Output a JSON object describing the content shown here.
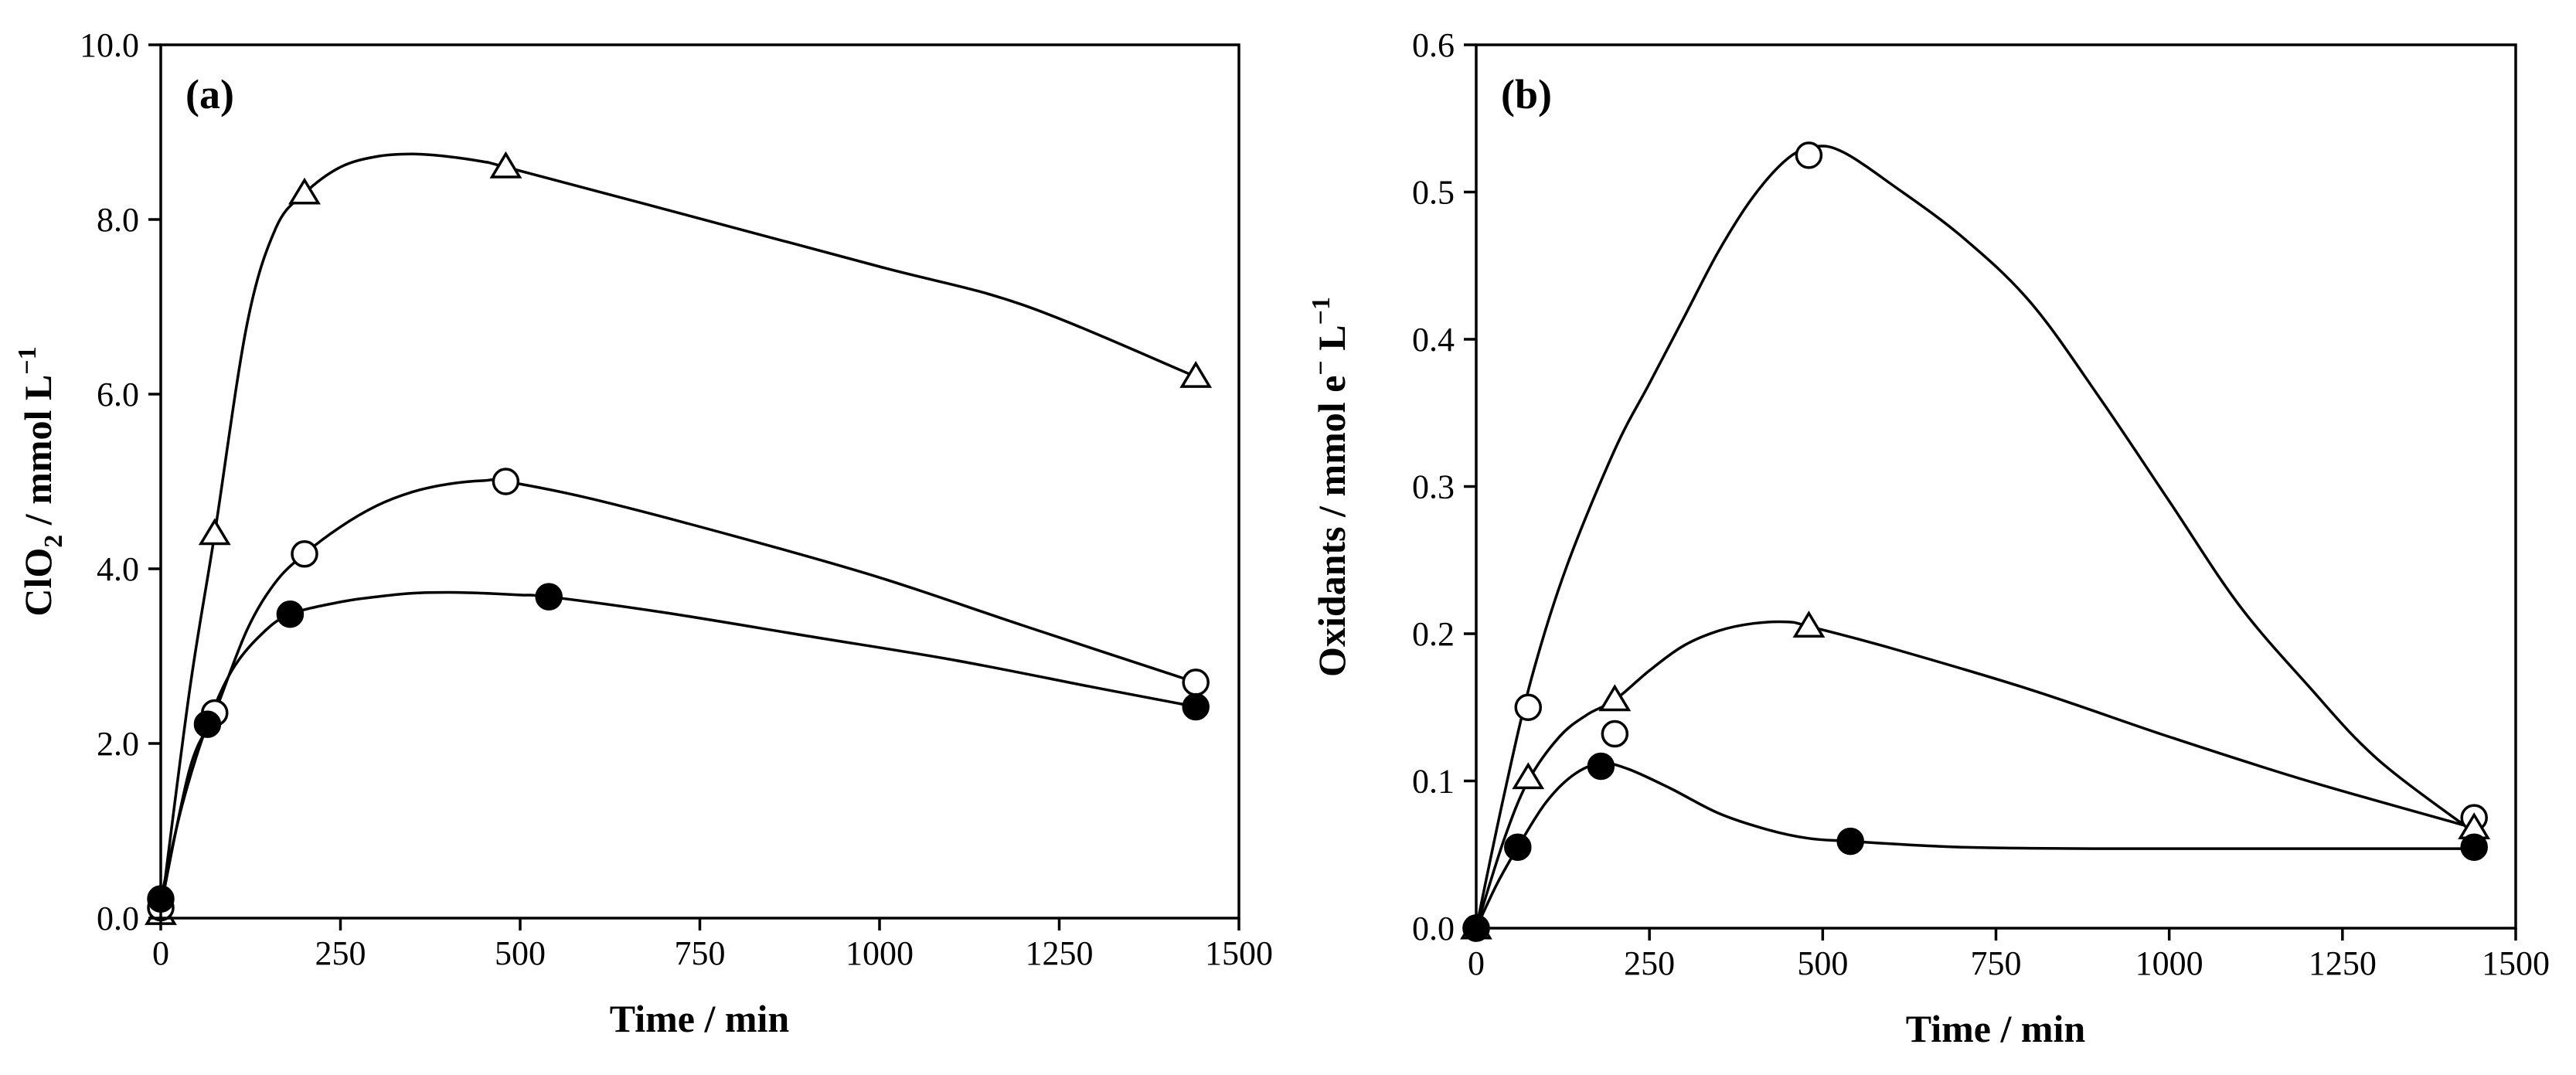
{
  "chart_data": [
    {
      "panel": "(a)",
      "type": "line",
      "xlabel": "Time / min",
      "ylabel_main": "ClO",
      "ylabel_sub": "2",
      "ylabel_rest": " / mmol L",
      "ylabel_sup": "−1",
      "xlim": [
        0,
        1500
      ],
      "ylim": [
        0,
        10
      ],
      "xticks": [
        0,
        250,
        500,
        750,
        1000,
        1250,
        1500
      ],
      "yticks": [
        0,
        2,
        4,
        6,
        8,
        10
      ],
      "ytick_labels": [
        "0.0",
        "2.0",
        "4.0",
        "6.0",
        "8.0",
        "10.0"
      ],
      "grid": false,
      "series": [
        {
          "marker": "triangle-open",
          "x": [
            0,
            75,
            200,
            480,
            1440
          ],
          "y": [
            0.05,
            4.4,
            8.3,
            8.6,
            6.2
          ],
          "curve_x": [
            0,
            40,
            75,
            120,
            160,
            200,
            250,
            300,
            350,
            400,
            450,
            480,
            700,
            1000,
            1200,
            1440
          ],
          "curve_y": [
            0.05,
            2.6,
            4.4,
            6.8,
            7.9,
            8.3,
            8.6,
            8.72,
            8.75,
            8.72,
            8.66,
            8.6,
            8.12,
            7.46,
            7.02,
            6.2
          ]
        },
        {
          "marker": "circle-open",
          "x": [
            0,
            75,
            200,
            480,
            1440
          ],
          "y": [
            0.12,
            2.35,
            4.17,
            5.0,
            2.7
          ],
          "curve_x": [
            0,
            40,
            75,
            120,
            160,
            200,
            250,
            300,
            350,
            400,
            450,
            480,
            600,
            800,
            1000,
            1200,
            1440
          ],
          "curve_y": [
            0.12,
            1.7,
            2.35,
            3.3,
            3.85,
            4.17,
            4.48,
            4.72,
            4.88,
            4.97,
            5.01,
            5.0,
            4.8,
            4.37,
            3.9,
            3.35,
            2.7
          ]
        },
        {
          "marker": "circle-filled",
          "x": [
            0,
            65,
            180,
            540,
            1440
          ],
          "y": [
            0.22,
            2.22,
            3.48,
            3.68,
            2.42
          ],
          "curve_x": [
            0,
            30,
            65,
            100,
            140,
            180,
            250,
            300,
            350,
            400,
            450,
            500,
            540,
            700,
            900,
            1100,
            1300,
            1440
          ],
          "curve_y": [
            0.22,
            1.3,
            2.22,
            2.85,
            3.25,
            3.48,
            3.62,
            3.68,
            3.72,
            3.73,
            3.72,
            3.7,
            3.68,
            3.5,
            3.23,
            2.96,
            2.64,
            2.42
          ]
        }
      ]
    },
    {
      "panel": "(b)",
      "type": "line",
      "xlabel": "Time / min",
      "ylabel_main": "Oxidants / mmol e",
      "ylabel_sup1": "−",
      "ylabel_rest": " L",
      "ylabel_sup2": "−1",
      "xlim": [
        0,
        1500
      ],
      "ylim": [
        0,
        0.6
      ],
      "xticks": [
        0,
        250,
        500,
        750,
        1000,
        1250,
        1500
      ],
      "yticks": [
        0,
        0.1,
        0.2,
        0.3,
        0.4,
        0.5,
        0.6
      ],
      "ytick_labels": [
        "0.0",
        "0.1",
        "0.2",
        "0.3",
        "0.4",
        "0.5",
        "0.6"
      ],
      "grid": false,
      "series": [
        {
          "marker": "circle-open",
          "x": [
            0,
            75,
            200,
            480,
            1440
          ],
          "y": [
            0.0,
            0.15,
            0.132,
            0.525,
            0.075
          ],
          "curve_x": [
            0,
            40,
            80,
            130,
            200,
            250,
            300,
            350,
            400,
            450,
            490,
            530,
            600,
            700,
            800,
            900,
            1000,
            1100,
            1200,
            1300,
            1440
          ],
          "curve_y": [
            0.0,
            0.09,
            0.17,
            0.245,
            0.325,
            0.37,
            0.415,
            0.46,
            0.497,
            0.523,
            0.531,
            0.527,
            0.505,
            0.47,
            0.425,
            0.36,
            0.29,
            0.22,
            0.165,
            0.115,
            0.065
          ]
        },
        {
          "marker": "triangle-open",
          "x": [
            0,
            75,
            200,
            480,
            1440
          ],
          "y": [
            0.0,
            0.102,
            0.155,
            0.205,
            0.068
          ],
          "curve_x": [
            0,
            40,
            75,
            120,
            160,
            200,
            250,
            300,
            350,
            400,
            450,
            480,
            600,
            800,
            1000,
            1200,
            1440
          ],
          "curve_y": [
            0.0,
            0.06,
            0.1,
            0.13,
            0.145,
            0.155,
            0.175,
            0.192,
            0.202,
            0.207,
            0.208,
            0.205,
            0.19,
            0.162,
            0.13,
            0.1,
            0.068
          ]
        },
        {
          "marker": "circle-filled",
          "x": [
            0,
            60,
            180,
            540,
            1440
          ],
          "y": [
            0.0,
            0.055,
            0.11,
            0.059,
            0.055
          ],
          "curve_x": [
            0,
            30,
            60,
            100,
            140,
            180,
            220,
            280,
            350,
            420,
            480,
            540,
            700,
            900,
            1100,
            1300,
            1440
          ],
          "curve_y": [
            0.0,
            0.03,
            0.055,
            0.085,
            0.104,
            0.112,
            0.108,
            0.095,
            0.078,
            0.067,
            0.061,
            0.059,
            0.055,
            0.054,
            0.054,
            0.054,
            0.054
          ]
        }
      ]
    }
  ]
}
